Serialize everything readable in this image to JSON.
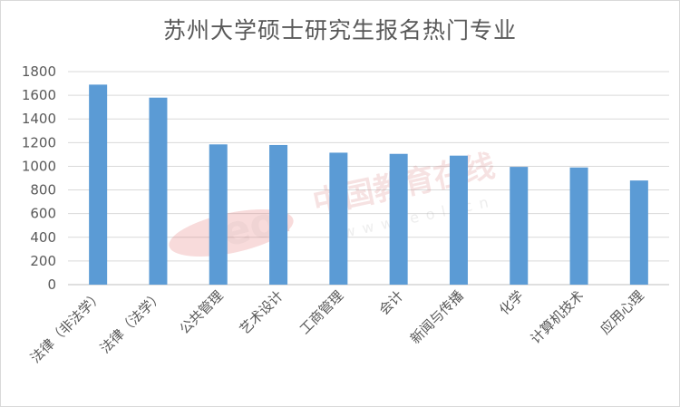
{
  "chart_data": {
    "type": "bar",
    "title": "苏州大学硕士研究生报名热门专业",
    "xlabel": "",
    "ylabel": "",
    "categories": [
      "法律（非法学）",
      "法律（法学）",
      "公共管理",
      "艺术设计",
      "工商管理",
      "会计",
      "新闻与传播",
      "化学",
      "计算机技术",
      "应用心理"
    ],
    "series": [
      {
        "values": [
          1690,
          1580,
          1185,
          1180,
          1115,
          1105,
          1090,
          995,
          990,
          880
        ]
      }
    ],
    "ylim": [
      0,
      1800
    ],
    "yticks": [
      0,
      200,
      400,
      600,
      800,
      1000,
      1200,
      1400,
      1600,
      1800
    ],
    "grid": true,
    "bar_color": "#5b9bd5",
    "legend": "none"
  },
  "watermark": {
    "logo_text": "eol",
    "cn_text": "中国教育在线",
    "url_text": "www.eol.cn"
  }
}
